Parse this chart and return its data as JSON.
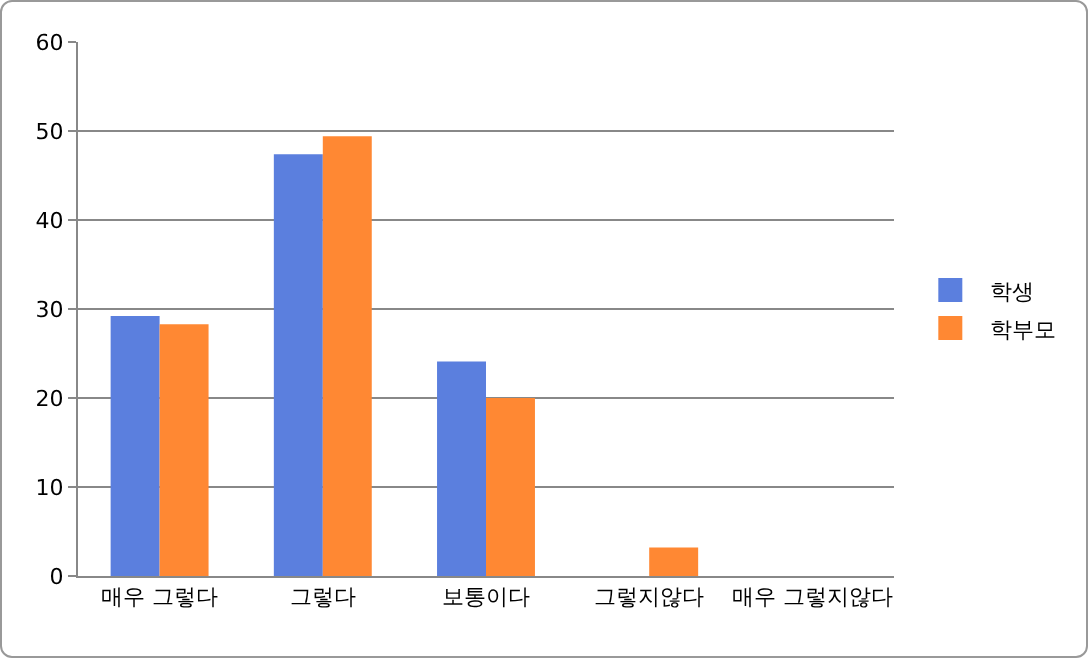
{
  "chart_data": {
    "type": "bar",
    "categories": [
      "매우 그렇다",
      "그렇다",
      "보통이다",
      "그렇지않다",
      "매우 그렇지않다"
    ],
    "series": [
      {
        "name": "학생",
        "color": "#5b7fde",
        "values": [
          29.2,
          47.4,
          24.1,
          0,
          0
        ]
      },
      {
        "name": "학부모",
        "color": "#ff8833",
        "values": [
          28.3,
          49.4,
          20.0,
          3.2,
          0
        ]
      }
    ],
    "ylim": [
      0,
      60
    ],
    "yticks": [
      0,
      10,
      20,
      30,
      40,
      50,
      60
    ],
    "grid": "y",
    "legend": "right"
  }
}
